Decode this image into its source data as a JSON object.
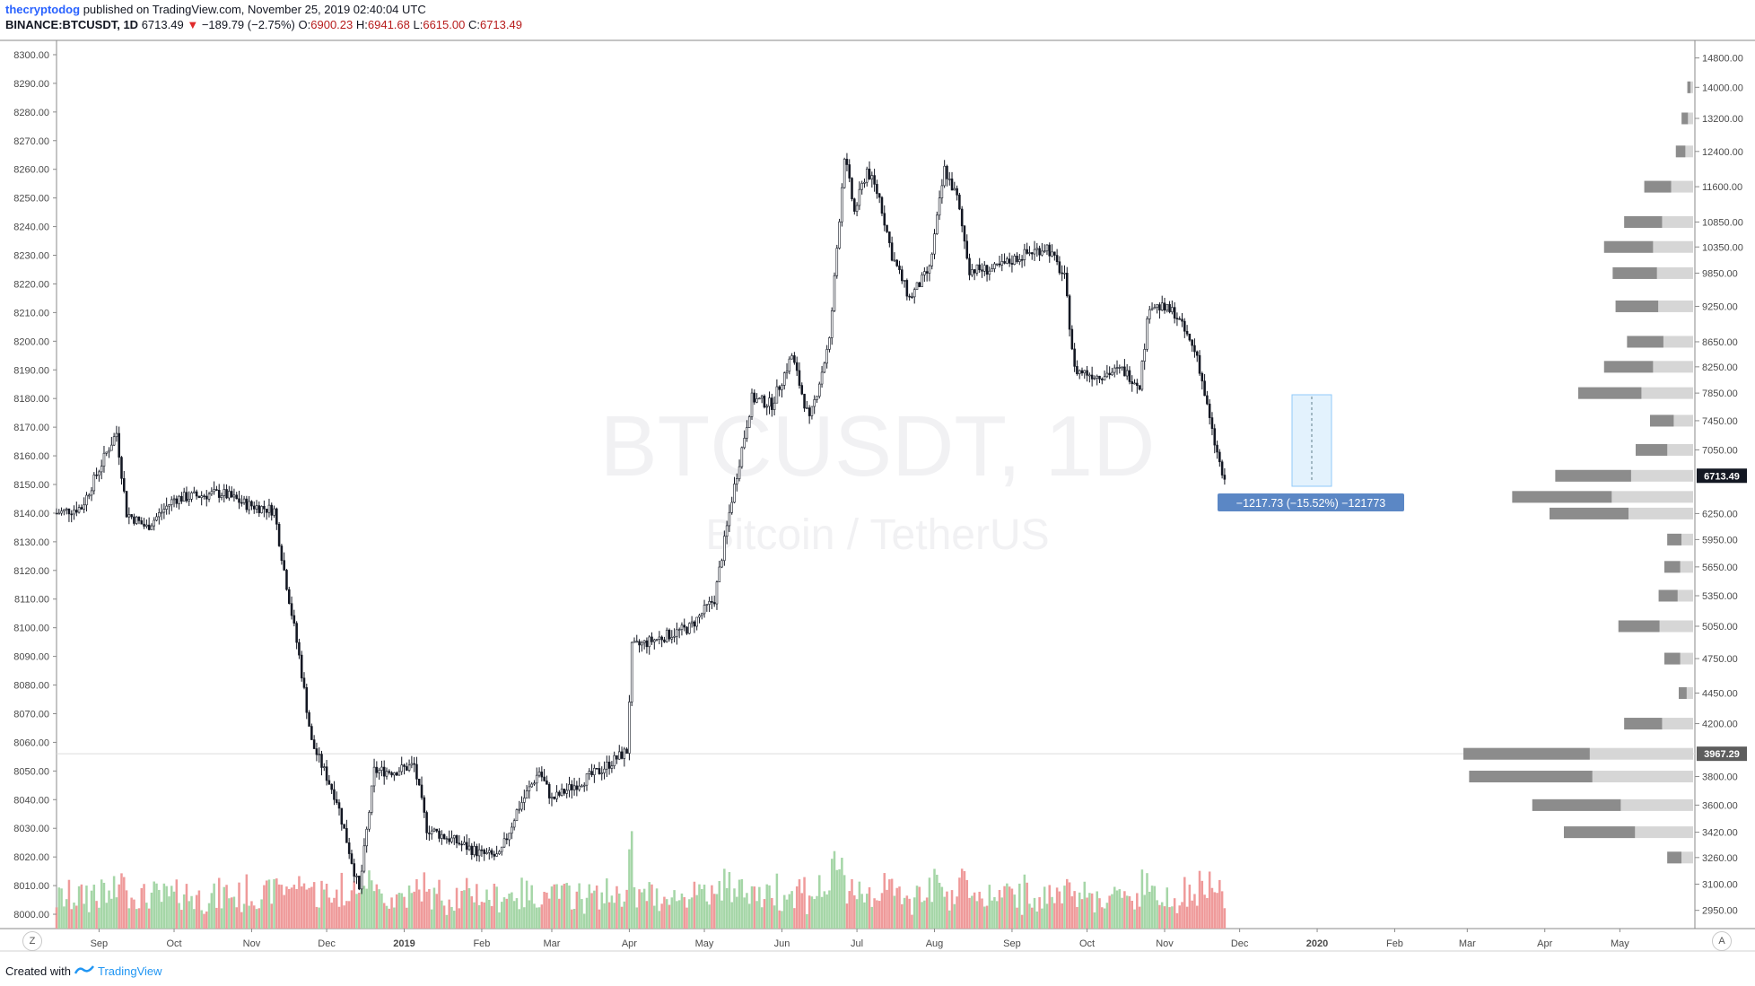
{
  "header": {
    "author": "thecryptodog",
    "published_text": "published on TradingView.com, November 25, 2019 02:40:04 UTC",
    "symbol": "BINANCE:BTCUSDT, 1D",
    "last": "6713.49",
    "change": "−189.79 (−2.75%)",
    "open_label": "O:",
    "open": "6900.23",
    "high_label": "H:",
    "high": "6941.68",
    "low_label": "L:",
    "low": "6615.00",
    "close_label": "C:",
    "close": "6713.49"
  },
  "watermark": {
    "line1": "BTCUSDT, 1D",
    "line2": "Bitcoin / TetherUS"
  },
  "measure_label": "−1217.73 (−15.52%) −121773",
  "footer": {
    "created_with": "Created with",
    "brand": "TradingView"
  },
  "buttons": {
    "left": "Z",
    "right": "A"
  },
  "colors": {
    "up_volume": "#a5d6a7",
    "down_volume": "#ef9a9a",
    "candle": "#131722",
    "profile_dark": "#8c8c8c",
    "profile_light": "#d6d6d6",
    "measure_fill": "#e3f2fd",
    "measure_label_bg": "#5b87c5"
  },
  "chart_data": {
    "type": "candlestick",
    "left_axis": {
      "ticks": [
        8000,
        8010,
        8020,
        8030,
        8040,
        8050,
        8060,
        8070,
        8080,
        8090,
        8100,
        8110,
        8120,
        8130,
        8140,
        8150,
        8160,
        8170,
        8180,
        8190,
        8200,
        8210,
        8220,
        8230,
        8240,
        8250,
        8260,
        8270,
        8280,
        8290,
        8300
      ],
      "ylim": [
        7995,
        8305
      ]
    },
    "right_axis": {
      "ticks": [
        2950,
        3100,
        3260,
        3420,
        3600,
        3800,
        4200,
        4450,
        4750,
        5050,
        5350,
        5650,
        5950,
        6250,
        7050,
        7450,
        7850,
        8250,
        8650,
        9250,
        9850,
        10350,
        10850,
        11600,
        12400,
        13200,
        14000,
        14800
      ],
      "current_price": "6713.49",
      "poc_price": "3967.29"
    },
    "x_axis": {
      "labels": [
        "Sep",
        "Oct",
        "Nov",
        "Dec",
        "2019",
        "Feb",
        "Mar",
        "Apr",
        "May",
        "Jun",
        "Jul",
        "Aug",
        "Sep",
        "Oct",
        "Nov",
        "Dec",
        "2020",
        "Feb",
        "Mar",
        "Apr",
        "May"
      ]
    },
    "price_path": [
      [
        "2018-08-15",
        8140
      ],
      [
        "2018-08-25",
        8142
      ],
      [
        "2018-09-05",
        8163
      ],
      [
        "2018-09-08",
        8168
      ],
      [
        "2018-09-12",
        8140
      ],
      [
        "2018-09-20",
        8135
      ],
      [
        "2018-10-01",
        8145
      ],
      [
        "2018-10-10",
        8146
      ],
      [
        "2018-10-20",
        8147
      ],
      [
        "2018-10-30",
        8143
      ],
      [
        "2018-11-10",
        8141
      ],
      [
        "2018-11-14",
        8120
      ],
      [
        "2018-11-20",
        8090
      ],
      [
        "2018-11-25",
        8060
      ],
      [
        "2018-12-05",
        8040
      ],
      [
        "2018-12-14",
        8008
      ],
      [
        "2018-12-20",
        8050
      ],
      [
        "2018-12-28",
        8050
      ],
      [
        "2019-01-05",
        8052
      ],
      [
        "2019-01-10",
        8030
      ],
      [
        "2019-01-20",
        8026
      ],
      [
        "2019-02-01",
        8021
      ],
      [
        "2019-02-08",
        8020
      ],
      [
        "2019-02-15",
        8036
      ],
      [
        "2019-02-24",
        8050
      ],
      [
        "2019-03-01",
        8040
      ],
      [
        "2019-03-10",
        8045
      ],
      [
        "2019-03-20",
        8050
      ],
      [
        "2019-03-31",
        8057
      ],
      [
        "2019-04-02",
        8093
      ],
      [
        "2019-04-15",
        8097
      ],
      [
        "2019-04-25",
        8100
      ],
      [
        "2019-05-05",
        8110
      ],
      [
        "2019-05-12",
        8145
      ],
      [
        "2019-05-20",
        8180
      ],
      [
        "2019-05-28",
        8178
      ],
      [
        "2019-06-05",
        8195
      ],
      [
        "2019-06-12",
        8172
      ],
      [
        "2019-06-20",
        8200
      ],
      [
        "2019-06-26",
        8265
      ],
      [
        "2019-06-30",
        8245
      ],
      [
        "2019-07-05",
        8260
      ],
      [
        "2019-07-10",
        8250
      ],
      [
        "2019-07-15",
        8230
      ],
      [
        "2019-07-22",
        8215
      ],
      [
        "2019-07-30",
        8225
      ],
      [
        "2019-08-05",
        8260
      ],
      [
        "2019-08-10",
        8250
      ],
      [
        "2019-08-15",
        8225
      ],
      [
        "2019-08-25",
        8225
      ],
      [
        "2019-09-05",
        8230
      ],
      [
        "2019-09-15",
        8233
      ],
      [
        "2019-09-22",
        8222
      ],
      [
        "2019-09-26",
        8190
      ],
      [
        "2019-10-05",
        8188
      ],
      [
        "2019-10-15",
        8190
      ],
      [
        "2019-10-22",
        8185
      ],
      [
        "2019-10-26",
        8213
      ],
      [
        "2019-11-05",
        8210
      ],
      [
        "2019-11-14",
        8195
      ],
      [
        "2019-11-20",
        8168
      ],
      [
        "2019-11-25",
        8150
      ]
    ],
    "volume_profile_bins": [
      {
        "price": 14000,
        "total": 0.02
      },
      {
        "price": 13200,
        "total": 0.04
      },
      {
        "price": 12400,
        "total": 0.06
      },
      {
        "price": 11600,
        "total": 0.17
      },
      {
        "price": 10850,
        "total": 0.24
      },
      {
        "price": 10350,
        "total": 0.31
      },
      {
        "price": 9850,
        "total": 0.28
      },
      {
        "price": 9250,
        "total": 0.27
      },
      {
        "price": 8650,
        "total": 0.23
      },
      {
        "price": 8250,
        "total": 0.31
      },
      {
        "price": 7850,
        "total": 0.4
      },
      {
        "price": 7450,
        "total": 0.15
      },
      {
        "price": 7050,
        "total": 0.2
      },
      {
        "price": 6713,
        "total": 0.48
      },
      {
        "price": 6450,
        "total": 0.63
      },
      {
        "price": 6250,
        "total": 0.5
      },
      {
        "price": 5950,
        "total": 0.09
      },
      {
        "price": 5650,
        "total": 0.1
      },
      {
        "price": 5350,
        "total": 0.12
      },
      {
        "price": 5050,
        "total": 0.26
      },
      {
        "price": 4750,
        "total": 0.1
      },
      {
        "price": 4450,
        "total": 0.05
      },
      {
        "price": 4200,
        "total": 0.24
      },
      {
        "price": 3967,
        "total": 0.8
      },
      {
        "price": 3800,
        "total": 0.78
      },
      {
        "price": 3600,
        "total": 0.56
      },
      {
        "price": 3420,
        "total": 0.45
      },
      {
        "price": 3260,
        "total": 0.09
      }
    ]
  }
}
